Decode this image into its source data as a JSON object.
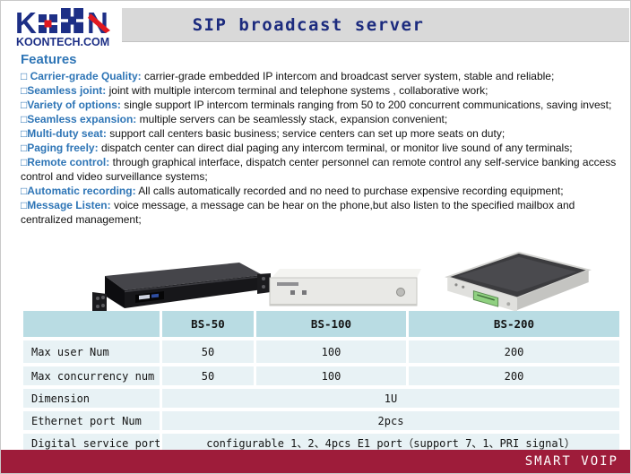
{
  "header": {
    "logo": {
      "letter_k": "K",
      "letter_n": "N",
      "domain": "KOONTECH.COM"
    },
    "title": "SIP broadcast server"
  },
  "features": {
    "heading": "Features",
    "items": [
      {
        "label": "□ Carrier-grade Quality:",
        "text": "carrier-grade embedded IP intercom and broadcast server system, stable and reliable;"
      },
      {
        "label": "□Seamless joint:",
        "text": "joint with multiple intercom terminal and telephone systems , collaborative work;"
      },
      {
        "label": "□Variety of options:",
        "text": "single support IP intercom terminals ranging from 50 to 200 concurrent communications, saving invest;"
      },
      {
        "label": "□Seamless expansion:",
        "text": "multiple servers can be seamlessly stack, expansion convenient;"
      },
      {
        "label": "□Multi-duty seat:",
        "text": "support call centers basic business; service centers can set up more seats on duty;"
      },
      {
        "label": "□Paging freely:",
        "text": "dispatch center can direct dial paging any intercom terminal, or monitor live sound of any terminals;"
      },
      {
        "label": "□Remote control:",
        "text": "through graphical interface, dispatch center personnel can remote control any self-service banking access control and video surveillance systems;"
      },
      {
        "label": "□Automatic recording:",
        "text": "All calls automatically recorded and no need to purchase expensive recording equipment;"
      },
      {
        "label": "□Message Listen:",
        "text": "voice message, a message can be hear on the phone,but also listen to the specified mailbox and centralized management;"
      }
    ]
  },
  "products": {
    "images": [
      "black-1u-rack-server-photo",
      "white-1u-server-photo",
      "silver-desktop-server-photo"
    ]
  },
  "table": {
    "columns": [
      "",
      "BS-50",
      "BS-100",
      "BS-200"
    ],
    "rows": [
      {
        "label": "Max user Num",
        "span": false,
        "values": [
          "50",
          "100",
          "200"
        ]
      },
      {
        "label": "Max concurrency num",
        "span": false,
        "values": [
          "50",
          "100",
          "200"
        ]
      },
      {
        "label": "Dimension",
        "span": true,
        "values": [
          "1U"
        ]
      },
      {
        "label": "Ethernet port Num",
        "span": true,
        "values": [
          "2pcs"
        ]
      },
      {
        "label": "Digital service port",
        "span": true,
        "values": [
          "configurable 1、2、4pcs E1 port（support 7、1、PRI signal）"
        ]
      }
    ]
  },
  "footer": {
    "text": "SMART VOIP"
  },
  "colors": {
    "accent_navy": "#1d2f86",
    "logo_red": "#e01820",
    "feature_blue": "#2e75b6",
    "titlebar_gray": "#d9d9d9",
    "table_header_bg": "#b9dce3",
    "table_row_bg": "#e8f2f5",
    "footer_maroon": "#9e1c3a"
  }
}
